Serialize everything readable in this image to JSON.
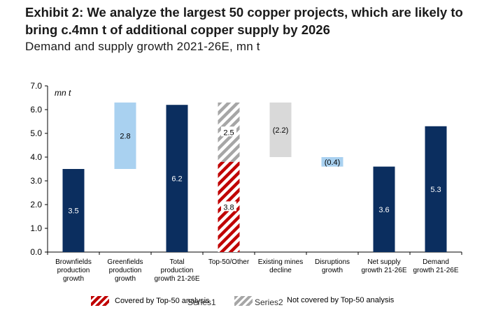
{
  "exhibit_title": "Exhibit 2: We analyze the largest 50 copper projects, which are likely to bring c.4mn t of additional copper supply by 2026",
  "colors": {
    "navy": "#0b2e5f",
    "light_blue": "#a9d1f0",
    "red_hatch": "#c00000",
    "grey_hatch": "#a6a6a6",
    "light_grey": "#d9d9d9",
    "axis": "#000000"
  },
  "chart_data": {
    "type": "bar",
    "subtype": "waterfall",
    "title": "Demand and supply growth 2021-26E, mn t",
    "unit_label": "mn t",
    "ylim": [
      0,
      7
    ],
    "yticks": [
      "0.0",
      "1.0",
      "2.0",
      "3.0",
      "4.0",
      "5.0",
      "6.0",
      "7.0"
    ],
    "categories": [
      "Brownfields production growth",
      "Greenfields production growth",
      "Total production growth 21-26E",
      "Top-50/Other",
      "Existing mines decline",
      "Disruptions growth",
      "Net supply growth 21-26E",
      "Demand growth 21-26E"
    ],
    "category_lines": [
      [
        "Brownfields",
        "production",
        "growth"
      ],
      [
        "Greenfields",
        "production",
        "growth"
      ],
      [
        "Total",
        "production",
        "growth 21-26E"
      ],
      [
        "Top-50/Other"
      ],
      [
        "Existing mines",
        "decline"
      ],
      [
        "Disruptions",
        "growth"
      ],
      [
        "Net supply",
        "growth 21-26E"
      ],
      [
        "Demand",
        "growth 21-26E"
      ]
    ],
    "bars": [
      {
        "category": "Brownfields production growth",
        "bottom": 0,
        "top": 3.5,
        "label": "3.5",
        "style": "navy"
      },
      {
        "category": "Greenfields production growth",
        "bottom": 3.5,
        "top": 6.3,
        "label": "2.8",
        "style": "light_blue"
      },
      {
        "category": "Total production growth 21-26E",
        "bottom": 0,
        "top": 6.2,
        "label": "6.2",
        "style": "navy"
      },
      {
        "category": "Top-50/Other",
        "bottom": 0,
        "top": 3.8,
        "label": "3.8",
        "style": "red_hatch"
      },
      {
        "category": "Top-50/Other",
        "bottom": 3.8,
        "top": 6.3,
        "label": "2.5",
        "style": "grey_hatch"
      },
      {
        "category": "Existing mines decline",
        "bottom": 4.0,
        "top": 6.3,
        "label": "(2.2)",
        "style": "light_grey"
      },
      {
        "category": "Disruptions growth",
        "bottom": 3.6,
        "top": 4.0,
        "label": "(0.4)",
        "style": "light_blue"
      },
      {
        "category": "Net supply growth 21-26E",
        "bottom": 0,
        "top": 3.6,
        "label": "3.6",
        "style": "navy"
      },
      {
        "category": "Demand growth 21-26E",
        "bottom": 0,
        "top": 5.3,
        "label": "5.3",
        "style": "navy"
      }
    ],
    "legend": [
      {
        "label": "Covered by Top-50 analysis",
        "series": "Series1",
        "style": "red_hatch"
      },
      {
        "label": "Not covered by Top-50 analysis",
        "series": "Series2",
        "style": "grey_hatch"
      }
    ],
    "legend_position": "bottom"
  }
}
